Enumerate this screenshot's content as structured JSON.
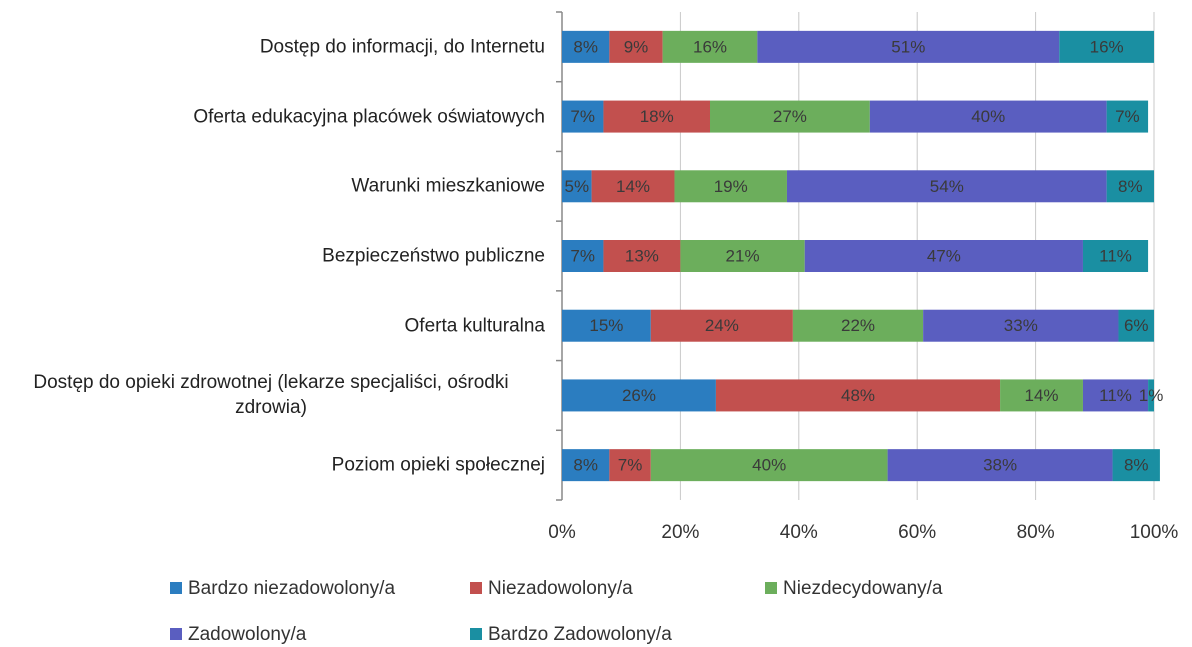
{
  "chart_data": {
    "type": "stacked_barh",
    "categories": [
      "Dostęp do informacji, do Internetu",
      "Oferta edukacyjna placówek oświatowych",
      "Warunki mieszkaniowe",
      "Bezpieczeństwo publiczne",
      "Oferta kulturalna",
      "Dostęp do opieki zdrowotnej (lekarze specjaliści, ośrodki zdrowia)",
      "Poziom opieki społecznej"
    ],
    "series": [
      {
        "name": "Bardzo niezadowolony/a",
        "color": "#2b7dc0",
        "values": [
          8,
          7,
          5,
          7,
          15,
          26,
          8
        ],
        "value_labels": [
          "8%",
          "7%",
          "5%",
          "7%",
          "15%",
          "26%",
          "8%"
        ]
      },
      {
        "name": "Niezadowolony/a",
        "color": "#c2504e",
        "values": [
          9,
          18,
          14,
          13,
          24,
          48,
          7
        ],
        "value_labels": [
          "9%",
          "18%",
          "14%",
          "13%",
          "24%",
          "48%",
          "7%"
        ]
      },
      {
        "name": "Niezdecydowany/a",
        "color": "#6cae5c",
        "values": [
          16,
          27,
          19,
          21,
          22,
          14,
          40
        ],
        "value_labels": [
          "16%",
          "27%",
          "19%",
          "21%",
          "22%",
          "14%",
          "40%"
        ]
      },
      {
        "name": "Zadowolony/a",
        "color": "#5a5ec0",
        "values": [
          51,
          40,
          54,
          47,
          33,
          11,
          38
        ],
        "value_labels": [
          "51%",
          "40%",
          "54%",
          "47%",
          "33%",
          "11%",
          "38%"
        ]
      },
      {
        "name": "Bardzo Zadowolony/a",
        "color": "#1a8fa2",
        "values": [
          16,
          7,
          8,
          11,
          6,
          1,
          8
        ],
        "value_labels": [
          "16%",
          "7%",
          "8%",
          "11%",
          "6%",
          "1%",
          "8%"
        ]
      }
    ],
    "xlim": [
      0,
      100
    ],
    "xticks": [
      {
        "value": 0,
        "label": "0%"
      },
      {
        "value": 20,
        "label": "20%"
      },
      {
        "value": 40,
        "label": "40%"
      },
      {
        "value": 60,
        "label": "60%"
      },
      {
        "value": 80,
        "label": "80%"
      },
      {
        "value": 100,
        "label": "100%"
      }
    ],
    "grid": true,
    "legend": "bottom"
  }
}
